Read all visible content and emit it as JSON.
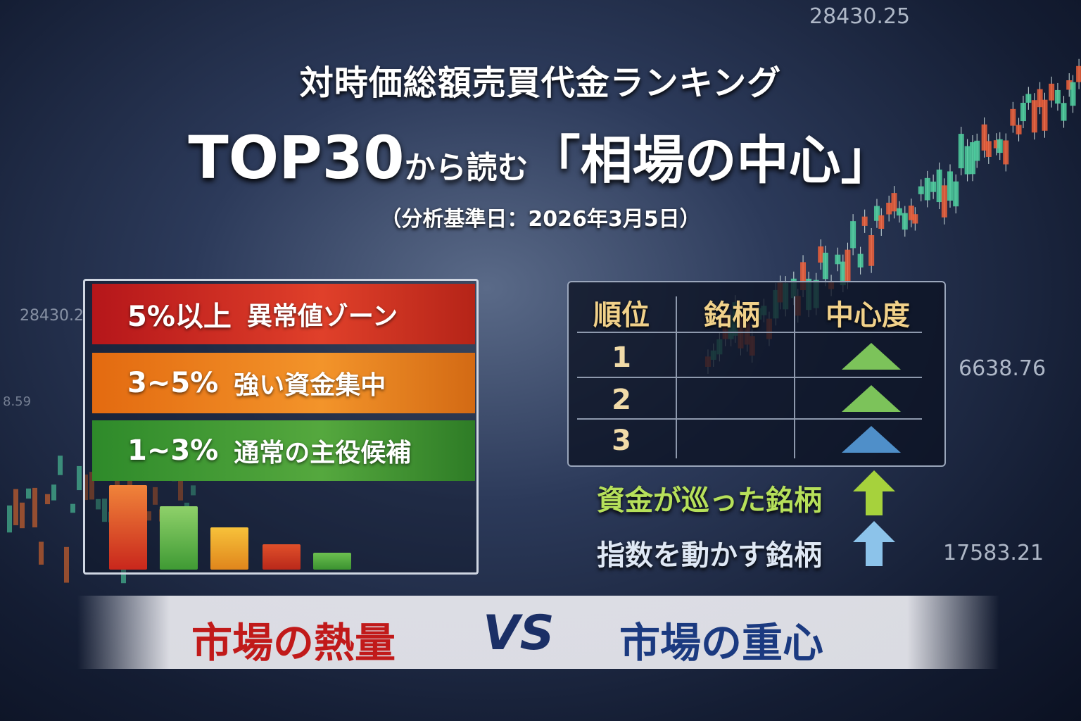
{
  "title": {
    "line1": "対時価総額売買代金ランキング",
    "line2_top": "TOP30",
    "line2_mid": "から読む",
    "line2_quote": "「相場の中心」",
    "subtitle": "（分析基準日：2026年3月5日）"
  },
  "tickers": [
    "28430.25",
    "28430.2",
    "8.59",
    "6638.76",
    "17583.21"
  ],
  "zones": [
    {
      "range": "5%以上",
      "label": "異常値ゾーン",
      "color": "#d52a1e"
    },
    {
      "range": "3~5%",
      "label": "強い資金集中",
      "color": "#ee8420"
    },
    {
      "range": "1~3%",
      "label": "通常の主役候補",
      "color": "#47a036"
    }
  ],
  "table": {
    "headers": [
      "順位",
      "銘柄",
      "中心度"
    ],
    "rows": [
      {
        "rank": "1",
        "name": "",
        "indicator": "up-triangle-green"
      },
      {
        "rank": "2",
        "name": "",
        "indicator": "up-triangle-green"
      },
      {
        "rank": "3",
        "name": "",
        "indicator": "up-triangle-blue"
      }
    ]
  },
  "captions": [
    {
      "text": "資金が巡った銘柄",
      "icon": "arrow-up-green",
      "color": "#b6e05a"
    },
    {
      "text": "指数を動かす銘柄",
      "icon": "arrow-up-blue",
      "color": "#dfe8f5"
    }
  ],
  "comparison": {
    "left": "市場の熱量",
    "vs": "VS",
    "right": "市場の重心"
  }
}
